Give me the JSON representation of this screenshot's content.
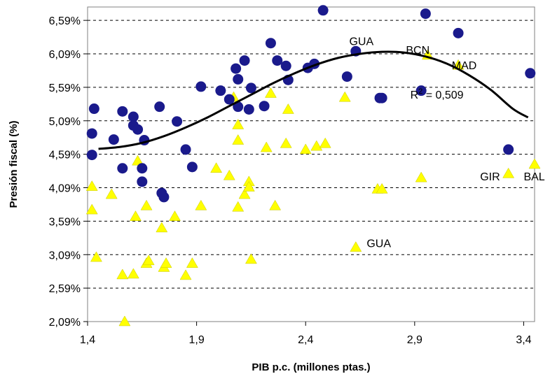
{
  "chart_data": {
    "type": "scatter",
    "xlabel": "PIB p.c. (millones ptas.)",
    "ylabel": "Presión fiscal (%)",
    "xlim": [
      1.4,
      3.45
    ],
    "ylim": [
      2.09,
      6.79
    ],
    "x_ticks": [
      "1,4",
      "1,9",
      "2,4",
      "2,9",
      "3,4"
    ],
    "x_tick_values": [
      1.4,
      1.9,
      2.4,
      2.9,
      3.4
    ],
    "y_ticks": [
      "2,09%",
      "2,59%",
      "3,09%",
      "3,59%",
      "4,09%",
      "4,59%",
      "5,09%",
      "5,59%",
      "6,09%",
      "6,59%"
    ],
    "y_tick_values": [
      2.09,
      2.59,
      3.09,
      3.59,
      4.09,
      4.59,
      5.09,
      5.59,
      6.09,
      6.59
    ],
    "grid": "horizontal-dashed",
    "series": [
      {
        "marker": "circle",
        "color": "#1a1a8c",
        "points": [
          [
            1.42,
            4.9
          ],
          [
            1.42,
            4.58
          ],
          [
            1.43,
            5.27
          ],
          [
            1.52,
            4.81
          ],
          [
            1.56,
            5.23
          ],
          [
            1.56,
            4.38
          ],
          [
            1.61,
            5.15
          ],
          [
            1.61,
            5.02
          ],
          [
            1.63,
            4.96
          ],
          [
            1.66,
            4.8
          ],
          [
            1.65,
            4.38
          ],
          [
            1.65,
            4.18
          ],
          [
            1.73,
            5.3
          ],
          [
            1.74,
            4.01
          ],
          [
            1.75,
            3.95
          ],
          [
            1.81,
            5.08
          ],
          [
            1.85,
            4.66
          ],
          [
            1.88,
            4.4
          ],
          [
            1.92,
            5.6
          ],
          [
            2.01,
            5.54
          ],
          [
            2.05,
            5.41
          ],
          [
            2.08,
            5.87
          ],
          [
            2.09,
            5.71
          ],
          [
            2.09,
            5.3
          ],
          [
            2.12,
            5.99
          ],
          [
            2.14,
            5.26
          ],
          [
            2.15,
            5.58
          ],
          [
            2.21,
            5.31
          ],
          [
            2.24,
            6.25
          ],
          [
            2.27,
            5.99
          ],
          [
            2.31,
            5.91
          ],
          [
            2.32,
            5.7
          ],
          [
            2.41,
            5.88
          ],
          [
            2.44,
            5.94
          ],
          [
            2.48,
            6.74
          ],
          [
            2.59,
            5.75
          ],
          [
            2.63,
            6.13
          ],
          [
            2.74,
            5.43
          ],
          [
            2.75,
            5.43
          ],
          [
            2.93,
            5.54
          ],
          [
            2.95,
            6.69
          ],
          [
            3.1,
            6.4
          ],
          [
            3.33,
            4.66
          ],
          [
            3.43,
            5.8
          ]
        ]
      },
      {
        "marker": "triangle",
        "color": "#ffff00",
        "points": [
          [
            1.42,
            4.11
          ],
          [
            1.42,
            3.76
          ],
          [
            1.44,
            3.05
          ],
          [
            1.51,
            3.99
          ],
          [
            1.56,
            2.79
          ],
          [
            1.57,
            2.09
          ],
          [
            1.61,
            2.8
          ],
          [
            1.62,
            3.66
          ],
          [
            1.63,
            4.49
          ],
          [
            1.67,
            3.82
          ],
          [
            1.67,
            2.96
          ],
          [
            1.68,
            3.0
          ],
          [
            1.74,
            3.49
          ],
          [
            1.75,
            2.9
          ],
          [
            1.76,
            2.96
          ],
          [
            1.8,
            3.66
          ],
          [
            1.85,
            2.78
          ],
          [
            1.88,
            2.96
          ],
          [
            1.92,
            3.82
          ],
          [
            1.99,
            4.38
          ],
          [
            2.05,
            4.27
          ],
          [
            2.07,
            5.44
          ],
          [
            2.09,
            5.03
          ],
          [
            2.09,
            4.8
          ],
          [
            2.09,
            3.8
          ],
          [
            2.12,
            3.99
          ],
          [
            2.14,
            4.18
          ],
          [
            2.14,
            4.1
          ],
          [
            2.15,
            3.02
          ],
          [
            2.22,
            4.69
          ],
          [
            2.24,
            5.5
          ],
          [
            2.26,
            3.82
          ],
          [
            2.31,
            4.75
          ],
          [
            2.32,
            5.26
          ],
          [
            2.4,
            4.66
          ],
          [
            2.45,
            4.71
          ],
          [
            2.49,
            4.75
          ],
          [
            2.58,
            5.44
          ],
          [
            2.63,
            3.2
          ],
          [
            2.73,
            4.07
          ],
          [
            2.75,
            4.07
          ],
          [
            2.93,
            4.24
          ],
          [
            2.96,
            6.07
          ],
          [
            3.1,
            5.92
          ],
          [
            3.33,
            4.3
          ],
          [
            3.45,
            4.44
          ]
        ]
      }
    ],
    "trendline": {
      "type": "polynomial",
      "color": "#000000",
      "points": [
        [
          1.45,
          4.67
        ],
        [
          1.55,
          4.7
        ],
        [
          1.65,
          4.76
        ],
        [
          1.75,
          4.86
        ],
        [
          1.85,
          4.99
        ],
        [
          1.95,
          5.14
        ],
        [
          2.05,
          5.31
        ],
        [
          2.15,
          5.48
        ],
        [
          2.25,
          5.65
        ],
        [
          2.35,
          5.8
        ],
        [
          2.45,
          5.93
        ],
        [
          2.55,
          6.03
        ],
        [
          2.65,
          6.09
        ],
        [
          2.75,
          6.12
        ],
        [
          2.85,
          6.11
        ],
        [
          2.95,
          6.05
        ],
        [
          3.05,
          5.94
        ],
        [
          3.15,
          5.77
        ],
        [
          3.25,
          5.55
        ],
        [
          3.35,
          5.27
        ],
        [
          3.42,
          5.14
        ]
      ]
    },
    "labels": [
      {
        "text": "GUA",
        "x": 2.6,
        "y": 6.22
      },
      {
        "text": "BCN",
        "x": 2.86,
        "y": 6.09
      },
      {
        "text": "MAD",
        "x": 3.07,
        "y": 5.86
      },
      {
        "text": "GIR",
        "x": 3.2,
        "y": 4.2
      },
      {
        "text": "BAL",
        "x": 3.4,
        "y": 4.2
      },
      {
        "text": "GUA",
        "x": 2.68,
        "y": 3.2
      }
    ],
    "r2_label": {
      "prefix": "R",
      "sup": "2",
      "suffix": " = 0,509",
      "x": 2.88,
      "y": 5.42
    }
  }
}
